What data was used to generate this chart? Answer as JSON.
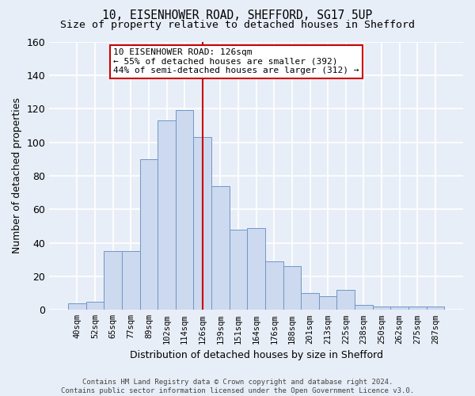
{
  "title": "10, EISENHOWER ROAD, SHEFFORD, SG17 5UP",
  "subtitle": "Size of property relative to detached houses in Shefford",
  "xlabel": "Distribution of detached houses by size in Shefford",
  "ylabel": "Number of detached properties",
  "bar_labels": [
    "40sqm",
    "52sqm",
    "65sqm",
    "77sqm",
    "89sqm",
    "102sqm",
    "114sqm",
    "126sqm",
    "139sqm",
    "151sqm",
    "164sqm",
    "176sqm",
    "188sqm",
    "201sqm",
    "213sqm",
    "225sqm",
    "238sqm",
    "250sqm",
    "262sqm",
    "275sqm",
    "287sqm"
  ],
  "bar_values": [
    4,
    5,
    35,
    35,
    90,
    113,
    119,
    103,
    74,
    48,
    49,
    29,
    26,
    10,
    8,
    12,
    3,
    2,
    2,
    2,
    2
  ],
  "bar_color": "#ccd9ee",
  "bar_edge_color": "#7096c8",
  "highlight_index": 7,
  "highlight_line_color": "#cc0000",
  "ylim": [
    0,
    160
  ],
  "yticks": [
    0,
    20,
    40,
    60,
    80,
    100,
    120,
    140,
    160
  ],
  "annotation_title": "10 EISENHOWER ROAD: 126sqm",
  "annotation_line1": "← 55% of detached houses are smaller (392)",
  "annotation_line2": "44% of semi-detached houses are larger (312) →",
  "annotation_box_color": "#ffffff",
  "annotation_box_edge": "#cc0000",
  "footer": "Contains HM Land Registry data © Crown copyright and database right 2024.\nContains public sector information licensed under the Open Government Licence v3.0.",
  "background_color": "#e8eef8",
  "grid_color": "#ffffff",
  "title_fontsize": 10.5,
  "subtitle_fontsize": 9.5,
  "tick_label_fontsize": 7.5,
  "ylabel_fontsize": 9,
  "xlabel_fontsize": 9,
  "footer_fontsize": 6.5,
  "annotation_fontsize": 8.0
}
